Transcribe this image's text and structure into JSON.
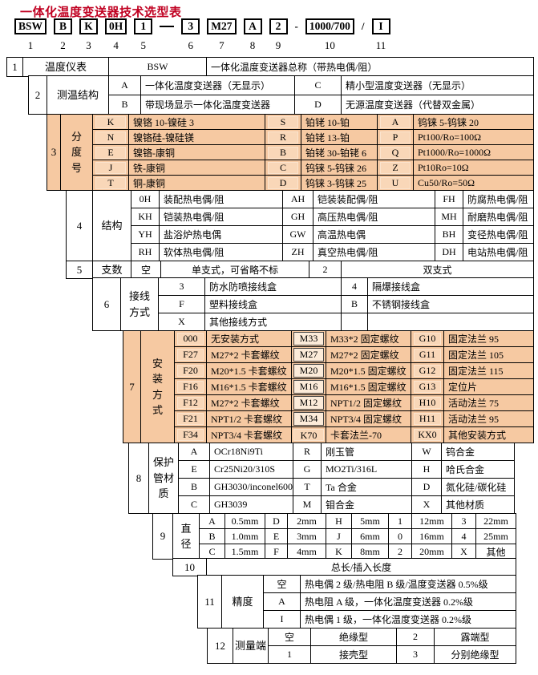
{
  "title": "一体化温度变送器技术选型表",
  "header": {
    "items": [
      {
        "code": "BSW",
        "num": "1",
        "sep": ""
      },
      {
        "code": "B",
        "num": "2",
        "sep": ""
      },
      {
        "code": "K",
        "num": "3",
        "sep": ""
      },
      {
        "code": "0H",
        "num": "4",
        "sep": ""
      },
      {
        "code": "1",
        "num": "5",
        "sep": "—"
      },
      {
        "code": "3",
        "num": "6",
        "sep": ""
      },
      {
        "code": "M27",
        "num": "7",
        "sep": ""
      },
      {
        "code": "A",
        "num": "8",
        "sep": ""
      },
      {
        "code": "2",
        "num": "9",
        "sep": "-"
      },
      {
        "code": "1000/700",
        "num": "10",
        "sep": "/"
      },
      {
        "code": "I",
        "num": "11",
        "sep": ""
      }
    ]
  },
  "sections": [
    {
      "num": "1",
      "label": "温度仪表",
      "rows": [
        [
          "BSW",
          "一体化温度变送器总称（带热电偶/阻）"
        ]
      ]
    },
    {
      "num": "2",
      "label": "测温结构",
      "rows": [
        [
          "A",
          "一体化温度变送器（无显示）",
          "C",
          "精小型温度变送器（无显示）"
        ],
        [
          "B",
          "带现场显示一体化温度变送器",
          "D",
          "无源温度变送器（代替双金属）"
        ]
      ]
    },
    {
      "num": "3",
      "label": "分度号",
      "rows": [
        [
          "K",
          "镍铬 10-镍硅 3",
          "S",
          "铂铑 10-铂",
          "A",
          "钨铼 5-钨铼 20"
        ],
        [
          "N",
          "镍铬硅-镍硅镁",
          "R",
          "铂铑 13-铂",
          "P",
          "Pt100/Ro=100Ω"
        ],
        [
          "E",
          "镍铬-康铜",
          "B",
          "铂铑 30-铂铑 6",
          "Q",
          "Pt1000/Ro=1000Ω"
        ],
        [
          "J",
          "铁-康铜",
          "C",
          "钨铼 5-钨铼 26",
          "Z",
          "Pt10Ro=10Ω"
        ],
        [
          "T",
          "铜-康铜",
          "D",
          "钨铼 3-钨铼 25",
          "U",
          "Cu50/Ro=50Ω"
        ]
      ]
    },
    {
      "num": "4",
      "label": "结构",
      "rows": [
        [
          "0H",
          "装配热电偶/阻",
          "AH",
          "铠装装配偶/阻",
          "FH",
          "防腐热电偶/阻"
        ],
        [
          "KH",
          "铠装热电偶/阻",
          "GH",
          "高压热电偶/阻",
          "MH",
          "耐磨热电偶/阻"
        ],
        [
          "YH",
          "盐浴炉热电偶",
          "GW",
          "高温热电偶",
          "BH",
          "变径热电偶/阻"
        ],
        [
          "RH",
          "软体热电偶/阻",
          "ZH",
          "真空热电偶/阻",
          "DH",
          "电站热电偶/阻"
        ]
      ]
    },
    {
      "num": "5",
      "label": "支数",
      "rows": [
        [
          "空",
          "单支式，可省略不标",
          "2",
          "双支式"
        ]
      ]
    },
    {
      "num": "6",
      "label": "接线方式",
      "rows": [
        [
          "3",
          "防水防喷接线盒",
          "4",
          "隔爆接线盒"
        ],
        [
          "F",
          "塑料接线盒",
          "B",
          "不锈钢接线盒"
        ],
        [
          "X",
          "其他接线方式",
          "",
          ""
        ]
      ]
    },
    {
      "num": "7",
      "label": "安装方式",
      "rows": [
        [
          "000",
          "无安装方式",
          "M33",
          "M33*2 固定螺纹",
          "G10",
          "固定法兰 95"
        ],
        [
          "F27",
          "M27*2 卡套螺纹",
          "M27",
          "M27*2 固定螺纹",
          "G11",
          "固定法兰 105"
        ],
        [
          "F20",
          "M20*1.5 卡套螺纹",
          "M20",
          "M20*1.5 固定螺纹",
          "G12",
          "固定法兰 115"
        ],
        [
          "F16",
          "M16*1.5 卡套螺纹",
          "M16",
          "M16*1.5 固定螺纹",
          "G13",
          "定位片"
        ],
        [
          "F12",
          "M27*2 卡套螺纹",
          "M12",
          "NPT1/2 固定螺纹",
          "H10",
          "活动法兰 75"
        ],
        [
          "F21",
          "NPT1/2 卡套螺纹",
          "M34",
          "NPT3/4 固定螺纹",
          "H11",
          "活动法兰 95"
        ],
        [
          "F34",
          "NPT3/4 卡套螺纹",
          "K70",
          "卡套法兰-70",
          "KX0",
          "其他安装方式"
        ]
      ]
    },
    {
      "num": "8",
      "label": "保护管材质",
      "rows": [
        [
          "A",
          "OCr18Ni9Ti",
          "R",
          "刚玉管",
          "W",
          "钨合金"
        ],
        [
          "E",
          "Cr25Ni20/310S",
          "G",
          "MO2Ti/316L",
          "H",
          "哈氏合金"
        ],
        [
          "B",
          "GH3030/inconel600",
          "T",
          "Ta 合金",
          "D",
          "氮化硅/碳化硅"
        ],
        [
          "C",
          "GH3039",
          "M",
          "钼合金",
          "X",
          "其他材质"
        ]
      ]
    },
    {
      "num": "9",
      "label": "直径",
      "rows": [
        [
          "A",
          "0.5mm",
          "D",
          "2mm",
          "H",
          "5mm",
          "1",
          "12mm",
          "3",
          "22mm"
        ],
        [
          "B",
          "1.0mm",
          "E",
          "3mm",
          "J",
          "6mm",
          "0",
          "16mm",
          "4",
          "25mm"
        ],
        [
          "C",
          "1.5mm",
          "F",
          "4mm",
          "K",
          "8mm",
          "2",
          "20mm",
          "X",
          "其他"
        ]
      ]
    },
    {
      "num": "10",
      "label": null,
      "rows": [
        [
          "总长/插入长度"
        ]
      ]
    },
    {
      "num": "11",
      "label": "精度",
      "rows": [
        [
          "空",
          "热电偶 2 级/热电阻 B 级/温度变送器 0.5%级"
        ],
        [
          "A",
          "热电阻 A 级，一体化温度变送器 0.2%级"
        ],
        [
          "I",
          "热电偶 1 级，一体化温度变送器 0.2%级"
        ]
      ]
    },
    {
      "num": "12",
      "label": "测量端",
      "rows": [
        [
          "空",
          "绝缘型",
          "2",
          "露端型"
        ],
        [
          "1",
          "接壳型",
          "3",
          "分别绝缘型"
        ]
      ]
    }
  ],
  "colors": {
    "title_red": "#c00021",
    "section_orange": "#f6c9a2",
    "border_black": "#000000"
  }
}
